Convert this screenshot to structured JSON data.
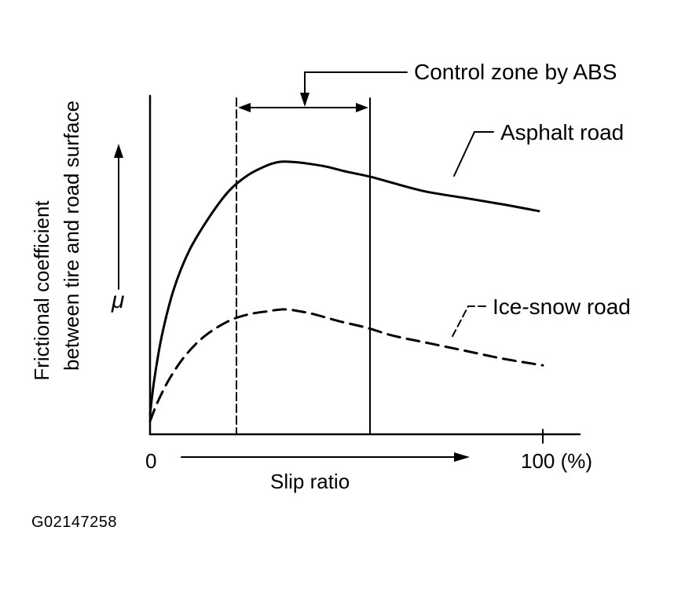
{
  "chart_data": {
    "type": "line",
    "xlabel": "Slip ratio",
    "ylabel_line1": "Frictional coefficient",
    "ylabel_line2": "between tire and road surface",
    "ysymbol": "μ",
    "xlim": [
      0,
      100
    ],
    "xtick_start": "0",
    "xtick_end": "100 (%)",
    "grid": false,
    "control_zone": {
      "label": "Control zone by ABS",
      "x_range": [
        22,
        56
      ]
    },
    "series": [
      {
        "name": "Asphalt road",
        "style": "solid",
        "x": [
          0,
          1,
          3,
          6,
          10,
          15,
          20,
          25,
          30,
          33,
          36,
          40,
          45,
          50,
          56,
          62,
          70,
          80,
          90,
          99
        ],
        "y": [
          0.06,
          0.16,
          0.3,
          0.44,
          0.56,
          0.66,
          0.74,
          0.79,
          0.82,
          0.83,
          0.83,
          0.825,
          0.815,
          0.8,
          0.785,
          0.765,
          0.74,
          0.72,
          0.7,
          0.68
        ]
      },
      {
        "name": "Ice-snow road",
        "style": "dashed",
        "x": [
          0,
          2,
          5,
          9,
          14,
          20,
          25,
          30,
          33,
          35,
          38,
          42,
          48,
          55,
          62,
          70,
          80,
          90,
          100
        ],
        "y": [
          0.04,
          0.1,
          0.17,
          0.24,
          0.3,
          0.345,
          0.365,
          0.375,
          0.38,
          0.38,
          0.375,
          0.365,
          0.345,
          0.325,
          0.3,
          0.28,
          0.255,
          0.23,
          0.21
        ]
      }
    ]
  },
  "figure_id": "G02147258"
}
